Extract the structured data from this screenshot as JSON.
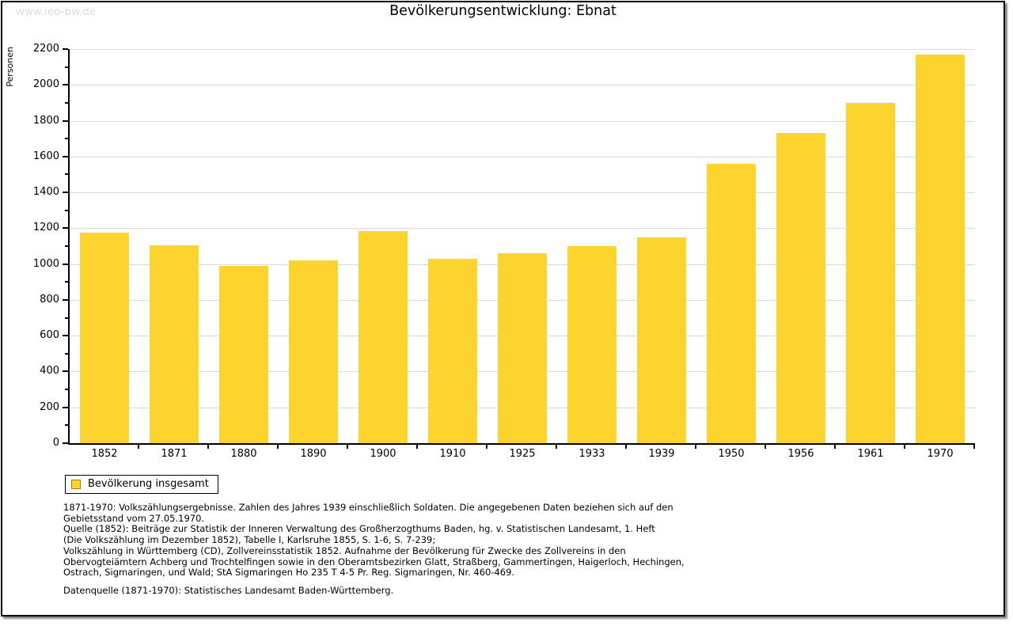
{
  "page": {
    "watermark": "www.leo-bw.de"
  },
  "chart_data": {
    "type": "bar",
    "title": "Bevölkerungsentwicklung: Ebnat",
    "ylabel": "Personen",
    "xlabel": "",
    "categories": [
      "1852",
      "1871",
      "1880",
      "1890",
      "1900",
      "1910",
      "1925",
      "1933",
      "1939",
      "1950",
      "1956",
      "1961",
      "1970"
    ],
    "values": [
      1175,
      1105,
      990,
      1020,
      1185,
      1030,
      1060,
      1100,
      1150,
      1560,
      1730,
      1900,
      2170
    ],
    "ylim": [
      0,
      2200
    ],
    "ytick_major": 200,
    "ytick_minor": 100,
    "grid": true,
    "legend_position": "bottom-left",
    "bar_color": "#fdd32d",
    "legend": [
      {
        "label": "Bevölkerung insgesamt",
        "color": "#fdd32d",
        "border": "#a08000"
      }
    ]
  },
  "footnotes": {
    "lines": [
      "1871-1970: Volkszählungsergebnisse. Zahlen des Jahres 1939 einschließlich Soldaten. Die angegebenen Daten beziehen sich auf den",
      "Gebietsstand vom 27.05.1970.",
      "Quelle (1852): Beiträge zur Statistik der Inneren Verwaltung des Großherzogthums Baden, hg. v. Statistischen Landesamt, 1. Heft",
      "(Die Volkszählung im Dezember 1852), Tabelle I, Karlsruhe 1855, S. 1-6, S. 7-239;",
      "Volkszählung in Württemberg (CD), Zollvereinsstatistik 1852. Aufnahme der Bevölkerung für Zwecke des Zollvereins in den",
      "Obervogteiämtern Achberg und Trochtelfingen sowie in den Oberamtsbezirken Glatt, Straßberg, Gammertingen, Haigerloch, Hechingen,",
      "Ostrach, Sigmaringen, und Wald; StA Sigmaringen Ho 235 T 4-5 Pr. Reg. Sigmaringen, Nr. 460-469."
    ],
    "datasource": "Datenquelle (1871-1970): Statistisches Landesamt Baden-Württemberg."
  }
}
